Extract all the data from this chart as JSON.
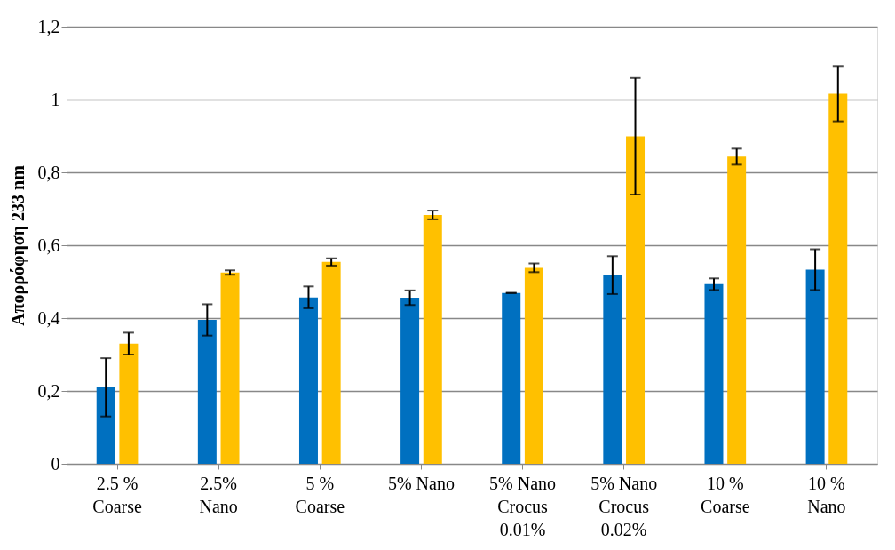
{
  "chart_data": {
    "type": "bar",
    "ylabel": "Απορρόφηση 233 nm",
    "categories": [
      "2.5 %\nCoarse",
      "2.5%\nNano",
      "5 %\nCoarse",
      "5% Nano",
      "5% Nano\nCrocus\n0.01%",
      "5% Nano\nCrocus\n0.02%",
      "10 %\nCoarse",
      "10 %\nNano"
    ],
    "series": [
      {
        "color": "#0070c0",
        "values": [
          0.21,
          0.395,
          0.457,
          0.456,
          0.469,
          0.518,
          0.493,
          0.533
        ],
        "errors": [
          0.08,
          0.043,
          0.03,
          0.02,
          0,
          0.052,
          0.016,
          0.056
        ]
      },
      {
        "color": "#ffc000",
        "values": [
          0.33,
          0.525,
          0.554,
          0.683,
          0.538,
          0.899,
          0.843,
          1.016
        ],
        "errors": [
          0.03,
          0.006,
          0.01,
          0.012,
          0.012,
          0.16,
          0.022,
          0.076
        ]
      }
    ],
    "ylim": [
      0,
      1.2
    ],
    "yticks": [
      0,
      {
        "value": 0.2,
        "label": "0,2"
      },
      {
        "value": 0.4,
        "label": "0,4"
      },
      {
        "value": 0.6,
        "label": "0,6"
      },
      {
        "value": 0.8,
        "label": "0,8"
      },
      1,
      {
        "value": 1.2,
        "label": "1,2"
      }
    ],
    "grid": "y",
    "legend": false
  }
}
